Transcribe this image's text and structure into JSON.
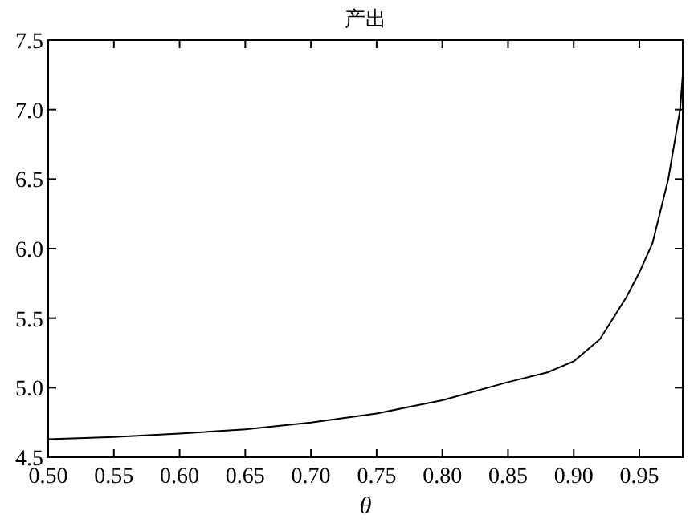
{
  "chart_data": {
    "type": "line",
    "title": "产出",
    "xlabel": "θ",
    "color": "#000000",
    "x": [
      0.5,
      0.55,
      0.6,
      0.65,
      0.7,
      0.75,
      0.8,
      0.85,
      0.88,
      0.9,
      0.92,
      0.93,
      0.94,
      0.95,
      0.96,
      0.972,
      0.981,
      0.983
    ],
    "values": [
      4.63,
      4.645,
      4.67,
      4.7,
      4.75,
      4.815,
      4.91,
      5.04,
      5.11,
      5.19,
      5.35,
      5.5,
      5.65,
      5.83,
      6.04,
      6.5,
      7.0,
      7.25
    ],
    "xlim": [
      0.5,
      0.983
    ],
    "ylim": [
      4.5,
      7.5
    ],
    "xticks": [
      {
        "value": 0.5,
        "label": "0.50"
      },
      {
        "value": 0.55,
        "label": "0.55"
      },
      {
        "value": 0.6,
        "label": "0.60"
      },
      {
        "value": 0.65,
        "label": "0.65"
      },
      {
        "value": 0.7,
        "label": "0.70"
      },
      {
        "value": 0.75,
        "label": "0.75"
      },
      {
        "value": 0.8,
        "label": "0.80"
      },
      {
        "value": 0.85,
        "label": "0.85"
      },
      {
        "value": 0.9,
        "label": "0.90"
      },
      {
        "value": 0.95,
        "label": "0.95"
      }
    ],
    "yticks": [
      4.5,
      {
        "value": 5,
        "label": "5.0"
      },
      5.5,
      {
        "value": 6,
        "label": "6.0"
      },
      6.5,
      {
        "value": 7,
        "label": "7.0"
      },
      7.5
    ]
  }
}
